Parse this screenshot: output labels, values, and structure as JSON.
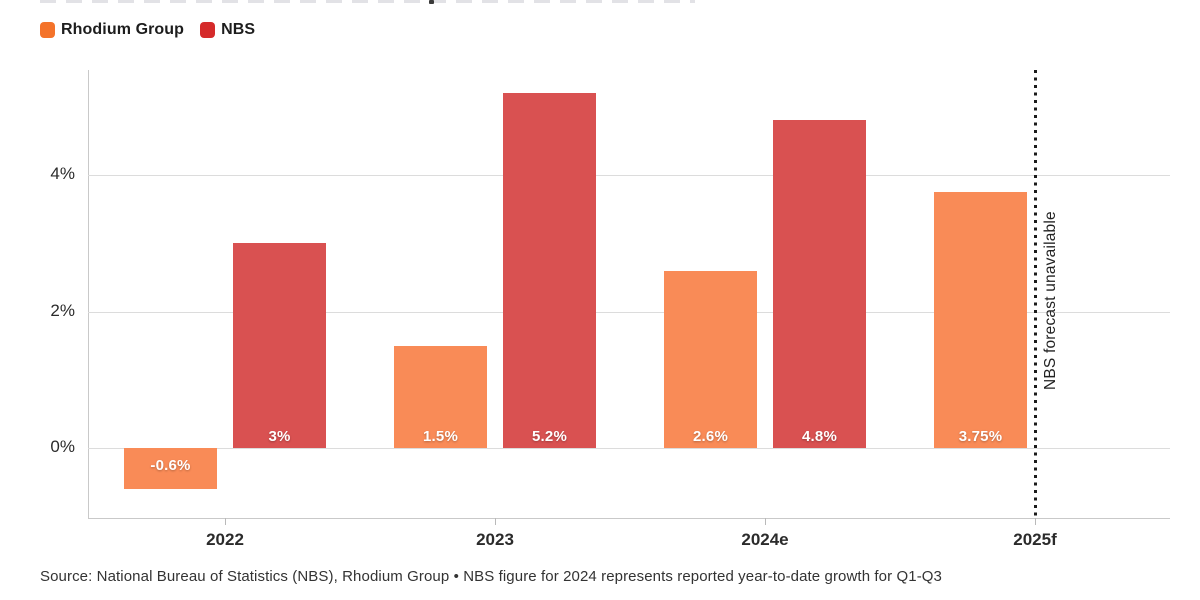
{
  "legend": {
    "items": [
      {
        "label": "Rhodium Group",
        "color": "#f4732a"
      },
      {
        "label": "NBS",
        "color": "#d52b2b"
      }
    ]
  },
  "colors": {
    "rhodium_bar": "#f98b57",
    "nbs_bar": "#d95151",
    "grid": "#dcdcdc",
    "axis": "#c9c9c9",
    "dotted_line": "#1b1b1b"
  },
  "chart_data": {
    "type": "bar",
    "title": "",
    "categories": [
      "2022",
      "2023",
      "2024e",
      "2025f"
    ],
    "series": [
      {
        "name": "Rhodium Group",
        "color": "#f98b57",
        "values": [
          -0.6,
          1.5,
          2.6,
          3.75
        ],
        "labels": [
          "-0.6%",
          "1.5%",
          "2.6%",
          "3.75%"
        ]
      },
      {
        "name": "NBS",
        "color": "#d95151",
        "values": [
          3,
          5.2,
          4.8,
          null
        ],
        "labels": [
          "3%",
          "5.2%",
          "4.8%",
          null
        ]
      }
    ],
    "xlabel": "",
    "ylabel": "",
    "yticks": [
      0,
      2,
      4
    ],
    "ytick_labels": [
      "0%",
      "2%",
      "4%"
    ],
    "ylim": [
      -1.03,
      5.54
    ],
    "grid": true,
    "legend_position": "top-left",
    "annotation": "NBS forecast unavailable",
    "annotation_category": "2025f"
  },
  "footer": {
    "source": "Source: National Bureau of Statistics (NBS), Rhodium Group • NBS figure for 2024 represents reported year-to-date growth for Q1-Q3"
  }
}
